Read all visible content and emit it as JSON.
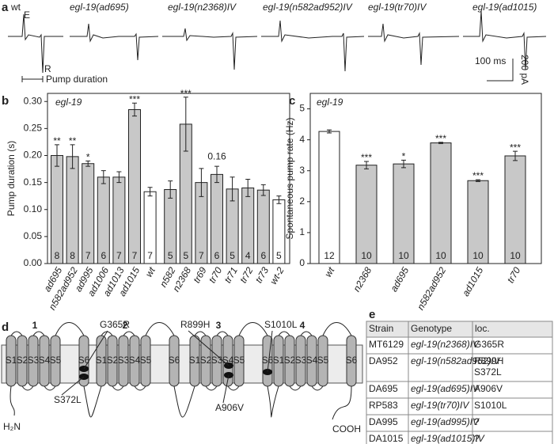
{
  "panel_labels": [
    "a",
    "b",
    "c",
    "d",
    "e"
  ],
  "traces": {
    "labels": [
      "wt",
      "egl-19(ad695)",
      "egl-19(n2368)IV",
      "egl-19(n582ad952)IV",
      "egl-19(tr70)IV",
      "egl-19(ad1015)"
    ],
    "E": "E",
    "R": "R",
    "pump_duration": "Pump duration",
    "scale_time": "100 ms",
    "scale_current": "200 pA"
  },
  "chart_data": [
    {
      "type": "bar",
      "title": "egl-19",
      "ylabel": "Pump duration (s)",
      "categories": [
        "ad695",
        "n582ad952",
        "ad995",
        "ad1006",
        "ad1013",
        "ad1015",
        "wt",
        "n582",
        "n2368",
        "tr69",
        "tr70",
        "tr71",
        "tr72",
        "tr73",
        "wt-2"
      ],
      "values": [
        0.2,
        0.198,
        0.185,
        0.16,
        0.16,
        0.285,
        0.133,
        0.137,
        0.258,
        0.15,
        0.165,
        0.138,
        0.14,
        0.136,
        0.118
      ],
      "errors": [
        0.02,
        0.022,
        0.005,
        0.012,
        0.01,
        0.012,
        0.008,
        0.016,
        0.05,
        0.026,
        0.015,
        0.022,
        0.016,
        0.01,
        0.007
      ],
      "n": [
        8,
        8,
        7,
        6,
        7,
        7,
        7,
        5,
        5,
        7,
        6,
        5,
        4,
        6,
        5
      ],
      "annotations": [
        "**",
        "**",
        "*",
        null,
        null,
        "***",
        null,
        null,
        "***",
        null,
        "0.16",
        null,
        null,
        null,
        null
      ],
      "colors": [
        "#c8c8c8",
        "#c8c8c8",
        "#c8c8c8",
        "#c8c8c8",
        "#c8c8c8",
        "#c8c8c8",
        "#ffffff",
        "#c8c8c8",
        "#c8c8c8",
        "#c8c8c8",
        "#c8c8c8",
        "#c8c8c8",
        "#c8c8c8",
        "#c8c8c8",
        "#ffffff"
      ],
      "ylim": [
        0,
        0.315
      ],
      "yticks": [
        {
          "value": 0,
          "label": "0.00"
        },
        {
          "value": 0.05,
          "label": "0.05"
        },
        {
          "value": 0.1,
          "label": "0.10"
        },
        {
          "value": 0.15,
          "label": "0.15"
        },
        {
          "value": 0.2,
          "label": "0.20"
        },
        {
          "value": 0.25,
          "label": "0.25"
        },
        {
          "value": 0.3,
          "label": "0.30"
        }
      ]
    },
    {
      "type": "bar",
      "title": "egl-19",
      "ylabel": "Spontaneous pump rate (Hz)",
      "categories": [
        "wt",
        "n2368",
        "ad695",
        "n582ad952",
        "ad1015",
        "tr70"
      ],
      "values": [
        4.27,
        3.18,
        3.22,
        3.9,
        2.68,
        3.48
      ],
      "errors": [
        0.05,
        0.12,
        0.12,
        0.02,
        0.03,
        0.15
      ],
      "n": [
        12,
        10,
        10,
        10,
        10,
        10
      ],
      "annotations": [
        null,
        "***",
        "*",
        "***",
        "***",
        "***"
      ],
      "colors": [
        "#ffffff",
        "#c8c8c8",
        "#c8c8c8",
        "#c8c8c8",
        "#c8c8c8",
        "#c8c8c8"
      ],
      "ylim": [
        0,
        5.5
      ],
      "yticks": [
        0,
        1,
        2,
        3,
        4,
        5
      ]
    }
  ],
  "diagram": {
    "domains": [
      "1",
      "2",
      "3",
      "4"
    ],
    "segments": [
      "S1",
      "S2",
      "S3",
      "S4",
      "S5",
      "S6"
    ],
    "mutations": [
      "G365R",
      "S372L",
      "R899H",
      "S1010L",
      "A906V"
    ],
    "n_terminus": "H₂N",
    "c_terminus": "COOH"
  },
  "table": {
    "header": [
      "Strain",
      "Genotype",
      "loc."
    ],
    "rows": [
      [
        "MT6129",
        "egl-19(n2368)IV",
        [
          "G365R"
        ]
      ],
      [
        "DA952",
        "egl-19(n582ad952)IV",
        [
          "R899H",
          "S372L"
        ]
      ],
      [
        "DA695",
        "egl-19(ad695)IV",
        [
          "A906V"
        ]
      ],
      [
        "RP583",
        "egl-19(tr70)IV",
        [
          "S1010L"
        ]
      ],
      [
        "DA995",
        "egl-19(ad995)IV",
        [
          "?"
        ]
      ],
      [
        "DA1015",
        "egl-19(ad1015)IV",
        [
          "?"
        ]
      ]
    ]
  }
}
